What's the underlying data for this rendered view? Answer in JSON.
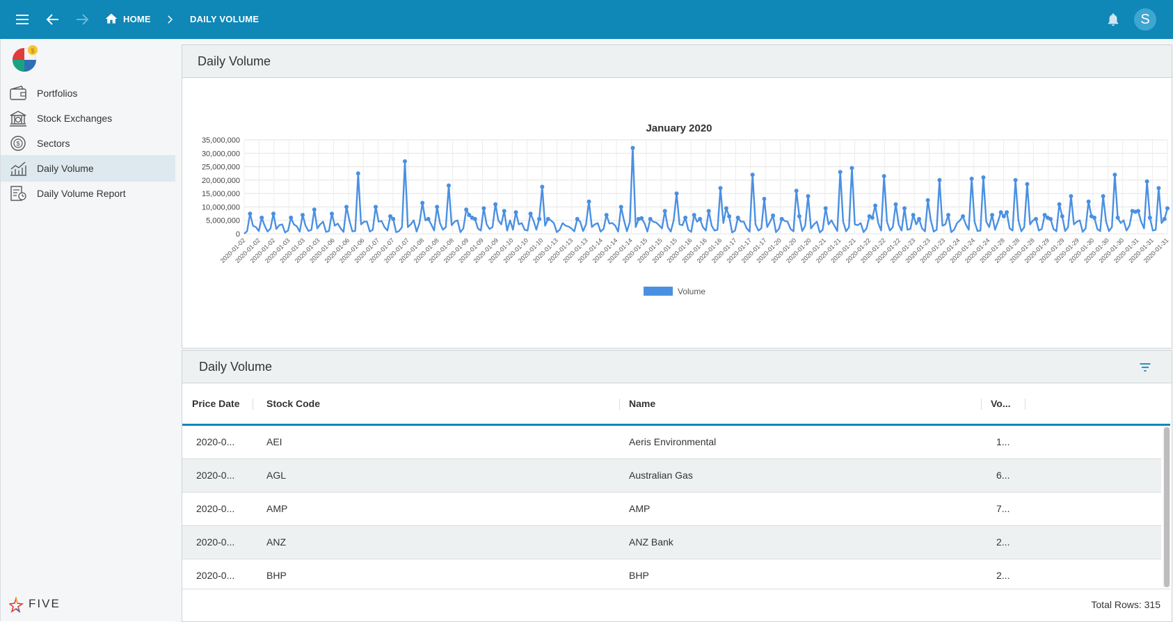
{
  "topbar": {
    "breadcrumb_home": "HOME",
    "breadcrumb_current": "DAILY VOLUME",
    "avatar_initial": "S",
    "bg_color": "#0f87b7"
  },
  "sidebar": {
    "items": [
      {
        "label": "Portfolios",
        "icon": "wallet-icon"
      },
      {
        "label": "Stock Exchanges",
        "icon": "bank-icon"
      },
      {
        "label": "Sectors",
        "icon": "dollar-cycle-icon"
      },
      {
        "label": "Daily Volume",
        "icon": "line-chart-icon"
      },
      {
        "label": "Daily Volume Report",
        "icon": "report-icon"
      }
    ],
    "active_index": 3,
    "footer_logo": "FIVE"
  },
  "chart_panel": {
    "title": "Daily Volume"
  },
  "chart_data": {
    "type": "line",
    "title": "January 2020",
    "legend": [
      "Volume"
    ],
    "legend_position": "bottom",
    "series_color": "#4a90e2",
    "ylim": [
      0,
      35000000
    ],
    "ytick_labels": [
      "35,000,000",
      "30,000,000",
      "25,000,000",
      "20,000,000",
      "15,000,000",
      "10,000,000",
      "5,000,000",
      "0"
    ],
    "x_tick_labels": [
      "2020-01-02",
      "2020-01-02",
      "2020-01-02",
      "2020-01-03",
      "2020-01-03",
      "2020-01-03",
      "2020-01-06",
      "2020-01-06",
      "2020-01-06",
      "2020-01-07",
      "2020-01-07",
      "2020-01-07",
      "2020-01-08",
      "2020-01-08",
      "2020-01-08",
      "2020-01-09",
      "2020-01-09",
      "2020-01-09",
      "2020-01-10",
      "2020-01-10",
      "2020-01-10",
      "2020-01-13",
      "2020-01-13",
      "2020-01-13",
      "2020-01-14",
      "2020-01-14",
      "2020-01-14",
      "2020-01-15",
      "2020-01-15",
      "2020-01-15",
      "2020-01-16",
      "2020-01-16",
      "2020-01-16",
      "2020-01-17",
      "2020-01-17",
      "2020-01-17",
      "2020-01-20",
      "2020-01-20",
      "2020-01-20",
      "2020-01-21",
      "2020-01-21",
      "2020-01-21",
      "2020-01-22",
      "2020-01-22",
      "2020-01-22",
      "2020-01-23",
      "2020-01-23",
      "2020-01-23",
      "2020-01-24",
      "2020-01-24",
      "2020-01-24",
      "2020-01-28",
      "2020-01-28",
      "2020-01-28",
      "2020-01-29",
      "2020-01-29",
      "2020-01-29",
      "2020-01-30",
      "2020-01-30",
      "2020-01-30",
      "2020-01-31",
      "2020-01-31",
      "2020-01-31"
    ],
    "values": [
      0,
      1000000,
      7500000,
      3000000,
      2500000,
      1000000,
      6000000,
      3000000,
      800000,
      2000000,
      7500000,
      1800000,
      3200000,
      3500000,
      500000,
      1200000,
      6000000,
      3500000,
      2800000,
      800000,
      7000000,
      3000000,
      1000000,
      1500000,
      9000000,
      2000000,
      3500000,
      4500000,
      700000,
      1000000,
      7500000,
      3000000,
      3800000,
      2000000,
      700000,
      10000000,
      5000000,
      900000,
      1000000,
      22500000,
      3500000,
      4500000,
      4500000,
      800000,
      1500000,
      10000000,
      4500000,
      4800000,
      2500000,
      1200000,
      6500000,
      5500000,
      600000,
      1000000,
      2500000,
      27000000,
      2500000,
      3500000,
      5000000,
      800000,
      4000000,
      11500000,
      5000000,
      5500000,
      3500000,
      1200000,
      10000000,
      4000000,
      1500000,
      2500000,
      18000000,
      3200000,
      4500000,
      5000000,
      600000,
      2000000,
      9000000,
      7000000,
      6000000,
      5500000,
      2000000,
      1200000,
      9500000,
      3500000,
      1800000,
      2500000,
      11000000,
      5000000,
      3500000,
      8500000,
      1200000,
      5000000,
      1500000,
      8000000,
      3500000,
      4000000,
      1500000,
      1200000,
      7500000,
      5000000,
      1500000,
      5500000,
      17500000,
      3000000,
      5500000,
      5000000,
      4000000,
      600000,
      1500000,
      4000000,
      3000000,
      2700000,
      2000000,
      900000,
      5500000,
      4500000,
      1000000,
      3500000,
      12000000,
      2500000,
      3500000,
      4000000,
      800000,
      1800000,
      7000000,
      3800000,
      4000000,
      3000000,
      800000,
      10000000,
      5000000,
      900000,
      4500000,
      32000000,
      2500000,
      5500000,
      5800000,
      4000000,
      800000,
      5500000,
      4500000,
      4200000,
      3200000,
      2000000,
      8500000,
      2500000,
      800000,
      5000000,
      15000000,
      3500000,
      3200000,
      6000000,
      1500000,
      700000,
      7000000,
      4500000,
      5500000,
      2500000,
      1200000,
      8500000,
      3000000,
      1200000,
      1500000,
      17000000,
      4000000,
      9500000,
      6500000,
      500000,
      1200000,
      6000000,
      4500000,
      4500000,
      2000000,
      800000,
      22000000,
      3500000,
      1200000,
      2000000,
      13000000,
      2500000,
      4500000,
      6800000,
      600000,
      1800000,
      5500000,
      4800000,
      4500000,
      1800000,
      900000,
      16000000,
      6500000,
      1000000,
      3000000,
      14000000,
      2000000,
      3500000,
      4500000,
      500000,
      1500000,
      9500000,
      3500000,
      5000000,
      3000000,
      1000000,
      23000000,
      4500000,
      900000,
      2500000,
      24500000,
      3500000,
      3200000,
      4000000,
      600000,
      2000000,
      6500000,
      6000000,
      10500000,
      4000000,
      1200000,
      21500000,
      4500000,
      1200000,
      2500000,
      11000000,
      3500000,
      1200000,
      9500000,
      1500000,
      1800000,
      7000000,
      3500000,
      5500000,
      2000000,
      900000,
      12500000,
      5000000,
      800000,
      1500000,
      20000000,
      3000000,
      3500000,
      7000000,
      600000,
      1500000,
      4000000,
      5000000,
      6500000,
      3500000,
      1500000,
      20500000,
      4500000,
      1000000,
      1200000,
      21000000,
      4500000,
      2500000,
      7000000,
      1500000,
      4500000,
      8000000,
      6500000,
      8000000,
      2000000,
      1200000,
      20000000,
      5000000,
      900000,
      2500000,
      18500000,
      3500000,
      5000000,
      5500000,
      1200000,
      1800000,
      7000000,
      6000000,
      5500000,
      1800000,
      900000,
      11000000,
      6500000,
      1000000,
      2500000,
      14000000,
      3500000,
      4500000,
      5000000,
      700000,
      2000000,
      12000000,
      6500000,
      6000000,
      1800000,
      1000000,
      14000000,
      4500000,
      1000000,
      2500000,
      22000000,
      6000000,
      4000000,
      5000000,
      1200000,
      3000000,
      8500000,
      8200000,
      8500000,
      4500000,
      2000000,
      19500000,
      6000000,
      1200000,
      1500000,
      17000000,
      4000000,
      5500000,
      9500000
    ]
  },
  "table_panel": {
    "title": "Daily Volume",
    "filter_icon": "filter-icon",
    "columns": [
      "Price Date",
      "Stock Code",
      "Name",
      "Vo..."
    ],
    "rows": [
      [
        "2020-0...",
        "AEI",
        "Aeris Environmental",
        "1..."
      ],
      [
        "2020-0...",
        "AGL",
        "Australian Gas",
        "6..."
      ],
      [
        "2020-0...",
        "AMP",
        "AMP",
        "7..."
      ],
      [
        "2020-0...",
        "ANZ",
        "ANZ Bank",
        "2..."
      ],
      [
        "2020-0...",
        "BHP",
        "BHP",
        "2..."
      ]
    ],
    "total_rows_label": "Total Rows: 315"
  }
}
